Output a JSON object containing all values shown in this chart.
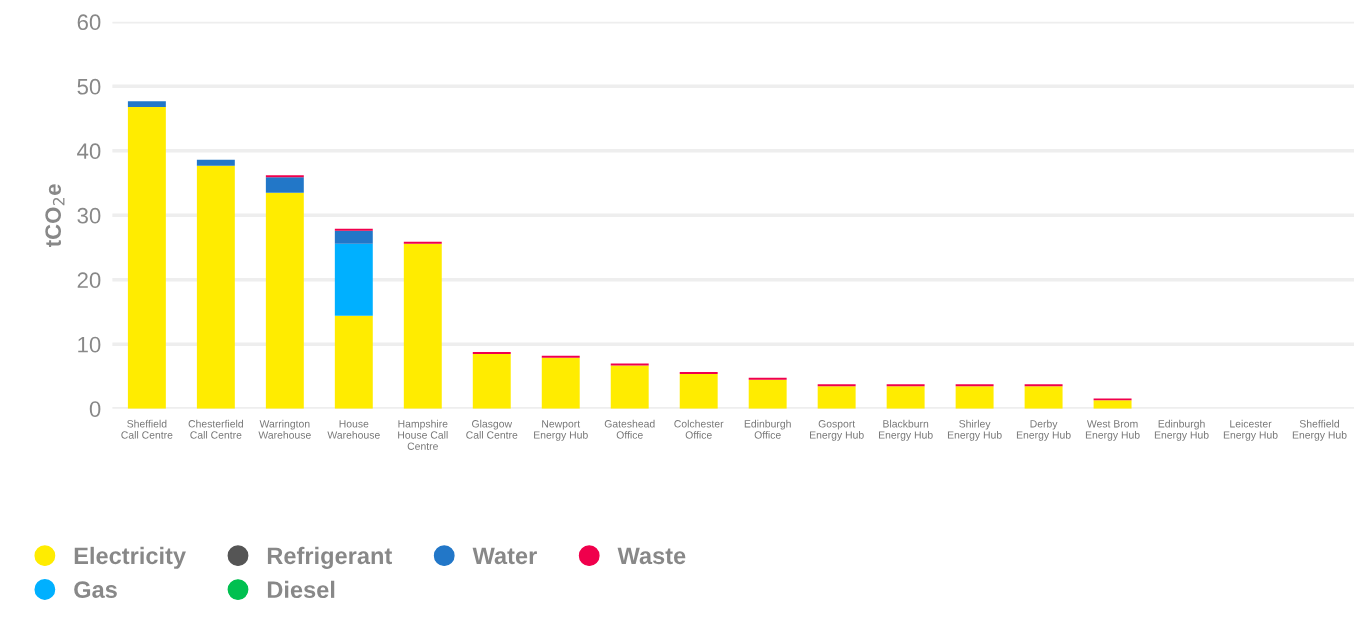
{
  "chart_data": {
    "type": "bar",
    "stacked": true,
    "ylabel": "tCO$_{2}$e",
    "categories": [
      "Sheffield\nCall Centre",
      "Chesterfield\nCall Centre",
      "Warrington\nWarehouse",
      "House\nWarehouse",
      "Hampshire\nHouse Call\nCentre",
      "Glasgow\nCall Centre",
      "Newport\nEnergy Hub",
      "Gateshead\nOffice",
      "Colchester\nOffice",
      "Edinburgh\nOffice",
      "Gosport\nEnergy Hub",
      "Blackburn\nEnergy Hub",
      "Shirley\nEnergy Hub",
      "Derby\nEnergy Hub",
      "West Brom\nEnergy Hub",
      "Edinburgh\nEnergy Hub",
      "Leicester\nEnergy Hub",
      "Sheffield\nEnergy Hub"
    ],
    "series": [
      {
        "name": "Electricity",
        "color": "#ffec00",
        "values": [
          46.8,
          37.7,
          33.5,
          14.4,
          25.6,
          8.5,
          7.9,
          6.7,
          5.4,
          4.5,
          3.5,
          3.5,
          3.5,
          3.5,
          1.3,
          0,
          0,
          0
        ]
      },
      {
        "name": "Gas",
        "color": "#00b0ff",
        "values": [
          0,
          0,
          0,
          11.2,
          0,
          0,
          0,
          0,
          0,
          0,
          0,
          0,
          0,
          0,
          0,
          0,
          0,
          0
        ]
      },
      {
        "name": "Refrigerant",
        "color": "#555555",
        "values": [
          0,
          0,
          0,
          0,
          0,
          0,
          0,
          0,
          0,
          0,
          0,
          0,
          0,
          0,
          0,
          0,
          0,
          0
        ]
      },
      {
        "name": "Diesel",
        "color": "#00c050",
        "values": [
          0,
          0,
          0,
          0,
          0,
          0,
          0,
          0,
          0,
          0,
          0,
          0,
          0,
          0,
          0,
          0,
          0,
          0
        ]
      },
      {
        "name": "Water",
        "color": "#2277c8",
        "values": [
          0.9,
          0.9,
          2.4,
          2.0,
          0,
          0,
          0,
          0,
          0,
          0,
          0,
          0,
          0,
          0,
          0,
          0,
          0,
          0
        ]
      },
      {
        "name": "Waste",
        "color": "#f0004c",
        "values": [
          0,
          0,
          0.3,
          0.3,
          0.3,
          0.3,
          0.3,
          0.3,
          0.3,
          0.3,
          0.3,
          0.3,
          0.3,
          0.3,
          0.3,
          0,
          0,
          0
        ]
      }
    ],
    "ylim": [
      0,
      60
    ],
    "yticks": [
      0,
      10,
      20,
      30,
      40,
      50,
      60
    ],
    "grid": "y",
    "legend": "bottom left"
  }
}
